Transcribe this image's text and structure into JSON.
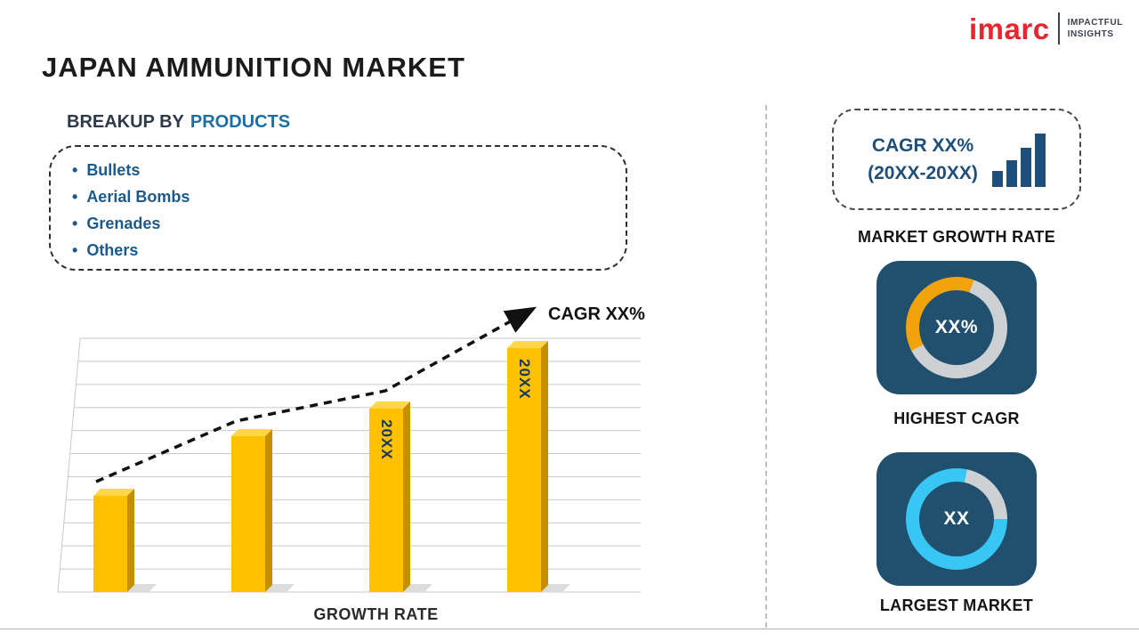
{
  "header": {
    "title": "JAPAN AMMUNITION MARKET",
    "logo": {
      "brand": "imarc",
      "tagline_line1": "IMPACTFUL",
      "tagline_line2": "INSIGHTS"
    }
  },
  "breakup": {
    "heading_prefix": "BREAKUP BY",
    "heading_highlight": "PRODUCTS",
    "items": [
      "Bullets",
      "Aerial Bombs",
      "Grenades",
      "Others"
    ]
  },
  "chart_data": {
    "type": "bar",
    "title": "",
    "categories": [
      "",
      "",
      "20XX",
      "20XX"
    ],
    "values": [
      2.1,
      3.4,
      4.0,
      5.3
    ],
    "ylim": [
      0,
      6.2
    ],
    "xlabel": "GROWTH RATE",
    "ylabel": "",
    "grid": "horizontal",
    "legend": false,
    "bar_color": "#FFC000",
    "trend_line": {
      "style": "dashed",
      "direction": "rising",
      "label": "CAGR XX%"
    }
  },
  "right_panel": {
    "cagr_box": {
      "line1": "CAGR XX%",
      "line2": "(20XX-20XX)",
      "icon": "ascending-bars-icon"
    },
    "market_growth_rate_label": "MARKET GROWTH RATE",
    "highest_cagr": {
      "value": "XX%",
      "label": "HIGHEST CAGR"
    },
    "largest_market": {
      "value": "XX",
      "label": "LARGEST MARKET"
    }
  },
  "colors": {
    "bar_yellow": "#FFC000",
    "navy_card": "#20506E",
    "accent_blue": "#1C6EA4",
    "text_blue": "#1D5A8C",
    "donut_yellow": "#F0A30A",
    "donut_cyan": "#38C6F4",
    "donut_gray": "#CDD1D4",
    "logo_red": "#E8262D"
  }
}
